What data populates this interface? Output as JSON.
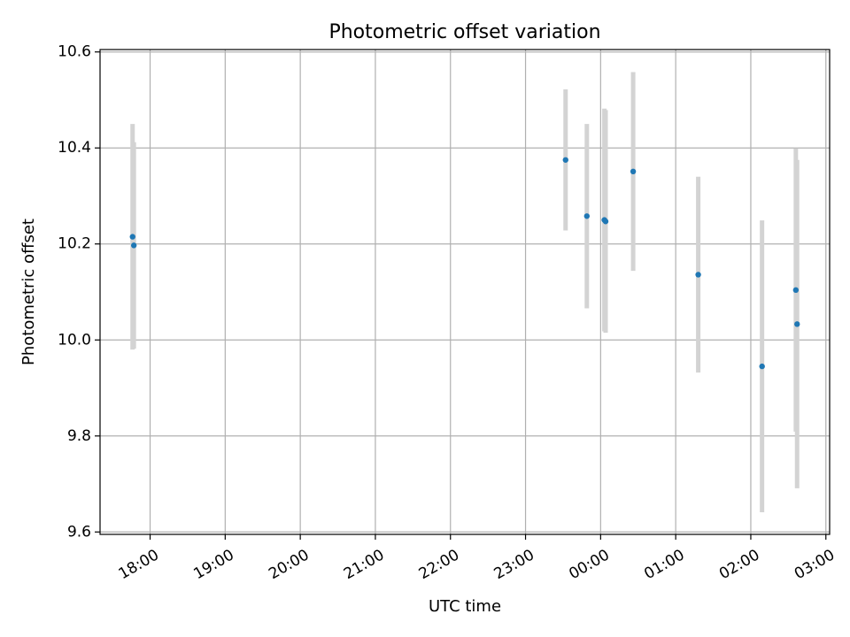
{
  "chart_data": {
    "type": "scatter",
    "title": "Photometric offset variation",
    "xlabel": "UTC time",
    "ylabel": "Photometric offset",
    "x_axis_kind": "time",
    "xlim": [
      "17:20",
      "03:03"
    ],
    "ylim": [
      9.595,
      10.605
    ],
    "x_ticks": [
      "18:00",
      "19:00",
      "20:00",
      "21:00",
      "22:00",
      "23:00",
      "00:00",
      "01:00",
      "02:00",
      "03:00"
    ],
    "y_ticks": [
      9.6,
      9.8,
      10.0,
      10.2,
      10.4,
      10.6
    ],
    "y_tick_labels": [
      "9.6",
      "9.8",
      "10.0",
      "10.2",
      "10.4",
      "10.6"
    ],
    "grid": true,
    "marker_color": "#1f77b4",
    "errorbar_color": "#d3d3d3",
    "points": [
      {
        "x": "17:46",
        "y": 10.215,
        "yerr": 0.235
      },
      {
        "x": "17:47",
        "y": 10.197,
        "yerr": 0.215
      },
      {
        "x": "23:32",
        "y": 10.375,
        "yerr": 0.147
      },
      {
        "x": "23:49",
        "y": 10.258,
        "yerr": 0.192
      },
      {
        "x": "00:03",
        "y": 10.25,
        "yerr": 0.232
      },
      {
        "x": "00:04",
        "y": 10.247,
        "yerr": 0.232
      },
      {
        "x": "00:26",
        "y": 10.351,
        "yerr": 0.207
      },
      {
        "x": "01:18",
        "y": 10.136,
        "yerr": 0.204
      },
      {
        "x": "02:09",
        "y": 9.945,
        "yerr": 0.304
      },
      {
        "x": "02:36",
        "y": 10.104,
        "yerr": 0.295
      },
      {
        "x": "02:37",
        "y": 10.033,
        "yerr": 0.342
      }
    ]
  }
}
